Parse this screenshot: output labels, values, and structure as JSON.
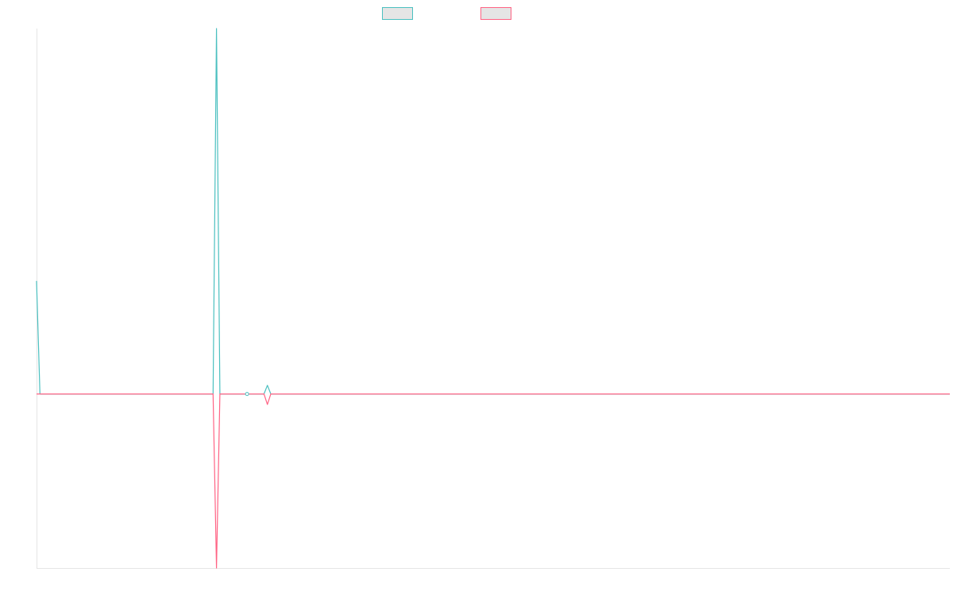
{
  "chart_data": {
    "type": "line",
    "title": "",
    "xlabel": "",
    "ylabel": "",
    "x_count": 270,
    "xlim": [
      0,
      269
    ],
    "ylim": [
      -1.0,
      2.1
    ],
    "grid": false,
    "legend": {
      "position": "top-center"
    },
    "series": [
      {
        "color": "#4bc0c0",
        "points": [
          [
            0,
            0.65
          ],
          [
            1,
            0.0
          ],
          [
            52,
            0.0
          ],
          [
            53,
            2.1
          ],
          [
            54,
            0.0
          ],
          [
            62,
            0.0
          ],
          [
            67,
            0.0
          ],
          [
            68,
            0.05
          ],
          [
            69,
            0.0
          ],
          [
            269,
            0.0
          ]
        ]
      },
      {
        "color": "#ff6384",
        "points": [
          [
            0,
            0.0
          ],
          [
            52,
            0.0
          ],
          [
            53,
            -1.0
          ],
          [
            54,
            0.0
          ],
          [
            67,
            0.0
          ],
          [
            68,
            -0.06
          ],
          [
            69,
            0.0
          ],
          [
            269,
            0.0
          ]
        ]
      }
    ],
    "markers": [
      {
        "x": 62,
        "y": 0.0,
        "color": "#4bc0c0"
      }
    ]
  }
}
